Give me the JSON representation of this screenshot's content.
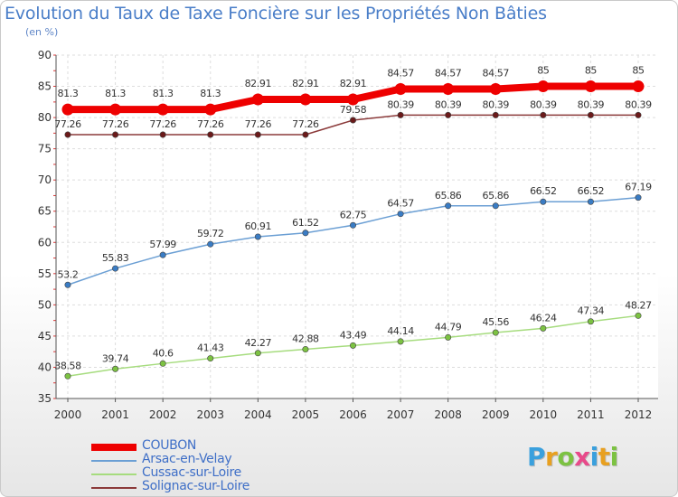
{
  "header": {
    "title": "Evolution du Taux de Taxe Foncière sur les Propriétés Non Bâties",
    "subtitle": "(en %)"
  },
  "branding": {
    "letters": [
      {
        "char": "P",
        "color": "#3aa0dd"
      },
      {
        "char": "r",
        "color": "#e8a020"
      },
      {
        "char": "o",
        "color": "#7cc242"
      },
      {
        "char": "x",
        "color": "#e84a8a"
      },
      {
        "char": "i",
        "color": "#3aa0dd"
      },
      {
        "char": "t",
        "color": "#e8a020"
      },
      {
        "char": "i",
        "color": "#7cc242"
      }
    ]
  },
  "chart_data": {
    "type": "line",
    "title": "Evolution du Taux de Taxe Foncière sur les Propriétés Non Bâties",
    "ylabel": "(en %)",
    "xlabel": "",
    "x": [
      "2000",
      "2001",
      "2002",
      "2003",
      "2004",
      "2005",
      "2006",
      "2007",
      "2008",
      "2009",
      "2010",
      "2011",
      "2012"
    ],
    "ylim": [
      35,
      90
    ],
    "yticks": [
      "35",
      "40",
      "45",
      "50",
      "55",
      "60",
      "65",
      "70",
      "75",
      "80",
      "85",
      "90"
    ],
    "grid": true,
    "legend_position": "bottom-left",
    "series": [
      {
        "name": "COUBON",
        "color": "#ee0000",
        "emphasis": "thick",
        "values": [
          81.3,
          81.3,
          81.3,
          81.3,
          82.91,
          82.91,
          82.91,
          84.57,
          84.57,
          84.57,
          85,
          85,
          85
        ],
        "labels": [
          "81.3",
          "81.3",
          "81.3",
          "81.3",
          "82.91",
          "82.91",
          "82.91",
          "84.57",
          "84.57",
          "84.57",
          "85",
          "85",
          "85"
        ]
      },
      {
        "name": "Arsac-en-Velay",
        "color": "#6b9fd4",
        "marker": "#3a7cc4",
        "values": [
          53.2,
          55.83,
          57.99,
          59.72,
          60.91,
          61.52,
          62.75,
          64.57,
          65.86,
          65.86,
          66.52,
          66.52,
          67.19
        ],
        "labels": [
          "53.2",
          "55.83",
          "57.99",
          "59.72",
          "60.91",
          "61.52",
          "62.75",
          "64.57",
          "65.86",
          "65.86",
          "66.52",
          "66.52",
          "67.19"
        ]
      },
      {
        "name": "Cussac-sur-Loire",
        "color": "#a6dc7e",
        "marker": "#7cc242",
        "values": [
          38.58,
          39.74,
          40.6,
          41.43,
          42.27,
          42.88,
          43.49,
          44.14,
          44.79,
          45.56,
          46.24,
          47.34,
          48.27
        ],
        "labels": [
          "38.58",
          "39.74",
          "40.6",
          "41.43",
          "42.27",
          "42.88",
          "43.49",
          "44.14",
          "44.79",
          "45.56",
          "46.24",
          "47.34",
          "48.27"
        ]
      },
      {
        "name": "Solignac-sur-Loire",
        "color": "#8b3a3a",
        "marker": "#6b1a1a",
        "values": [
          77.26,
          77.26,
          77.26,
          77.26,
          77.26,
          77.26,
          79.58,
          80.39,
          80.39,
          80.39,
          80.39,
          80.39,
          80.39
        ],
        "labels": [
          "77.26",
          "77.26",
          "77.26",
          "77.26",
          "77.26",
          "77.26",
          "79.58",
          "80.39",
          "80.39",
          "80.39",
          "80.39",
          "80.39",
          "80.39"
        ]
      }
    ]
  }
}
